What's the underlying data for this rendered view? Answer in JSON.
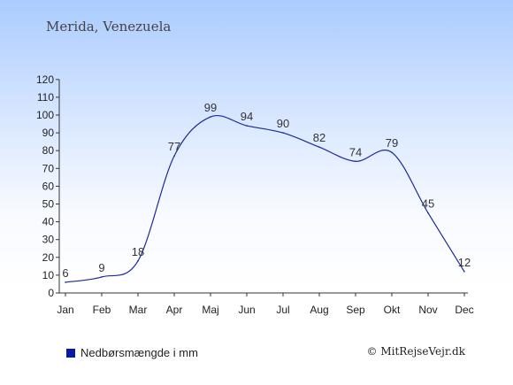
{
  "header": {
    "location": "Merida, Venezuela"
  },
  "legend": {
    "label": "Nedbørsmængde i mm",
    "color": "#0a1aa0"
  },
  "copyright": "© MitRejseVejr.dk",
  "chart_data": {
    "type": "line",
    "categories": [
      "Jan",
      "Feb",
      "Mar",
      "Apr",
      "Maj",
      "Jun",
      "Jul",
      "Aug",
      "Sep",
      "Okt",
      "Nov",
      "Dec"
    ],
    "series": [
      {
        "name": "Nedbørsmængde i mm",
        "values": [
          6,
          9,
          18,
          77,
          99,
          94,
          90,
          82,
          74,
          79,
          45,
          12
        ]
      }
    ],
    "data_labels": [
      "6",
      "9",
      "18",
      "77",
      "99",
      "94",
      "90",
      "82",
      "74",
      "79",
      "45",
      "12"
    ],
    "yticks": [
      0,
      10,
      20,
      30,
      40,
      50,
      60,
      70,
      80,
      90,
      100,
      110,
      120
    ],
    "ylim": [
      0,
      120
    ],
    "line_color": "#1a2a9a",
    "grid": false
  }
}
